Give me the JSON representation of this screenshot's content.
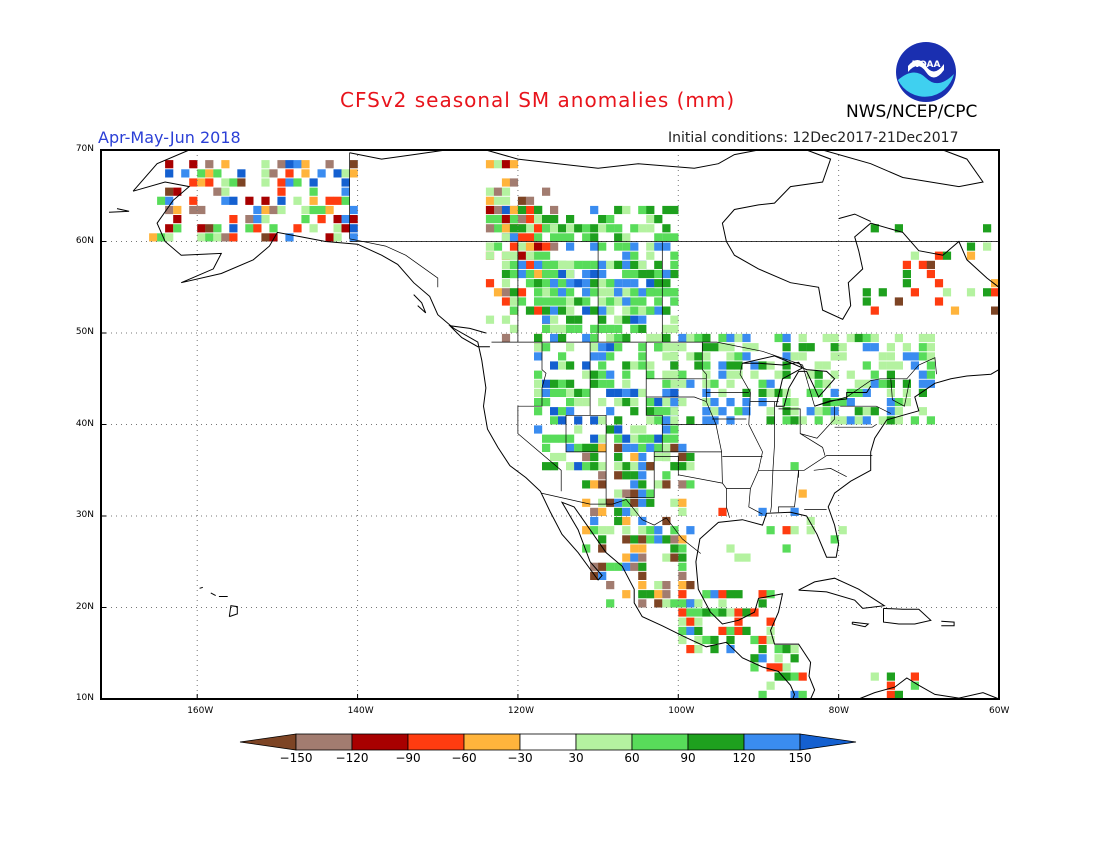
{
  "header": {
    "title": "CFSv2 seasonal SM anomalies (mm)",
    "period": "Apr-May-Jun 2018",
    "initial_conditions": "Initial conditions: 12Dec2017-21Dec2017",
    "agency": "NWS/NCEP/CPC",
    "logo_text": "NOAA",
    "logo_icon": "noaa-logo-icon"
  },
  "map": {
    "lon_range": [
      -172,
      -60
    ],
    "lat_range": [
      10,
      70
    ],
    "lon_ticks": [
      "160W",
      "140W",
      "120W",
      "100W",
      "80W",
      "60W"
    ],
    "lat_ticks": [
      "70N",
      "60N",
      "50N",
      "40N",
      "30N",
      "20N",
      "10N"
    ],
    "grid": "dotted",
    "colors": {
      "n150": "#7d4424",
      "n120": "#a27c70",
      "n90": "#a80000",
      "n60": "#ff3c10",
      "n30": "#ffb43c",
      "p30": "#b4f2a0",
      "p60": "#58dc5a",
      "p90": "#1ea01e",
      "p120": "#3a8cf0",
      "p150": "#1460d0"
    }
  },
  "colorbar": {
    "labels": [
      "-150",
      "-120",
      "-90",
      "-60",
      "-30",
      "30",
      "60",
      "90",
      "120",
      "150"
    ],
    "colors": [
      "#7d4424",
      "#a27c70",
      "#a80000",
      "#ff3c10",
      "#ffb43c",
      "#ffffff",
      "#b4f2a0",
      "#58dc5a",
      "#1ea01e",
      "#3a8cf0",
      "#1460d0"
    ]
  }
}
